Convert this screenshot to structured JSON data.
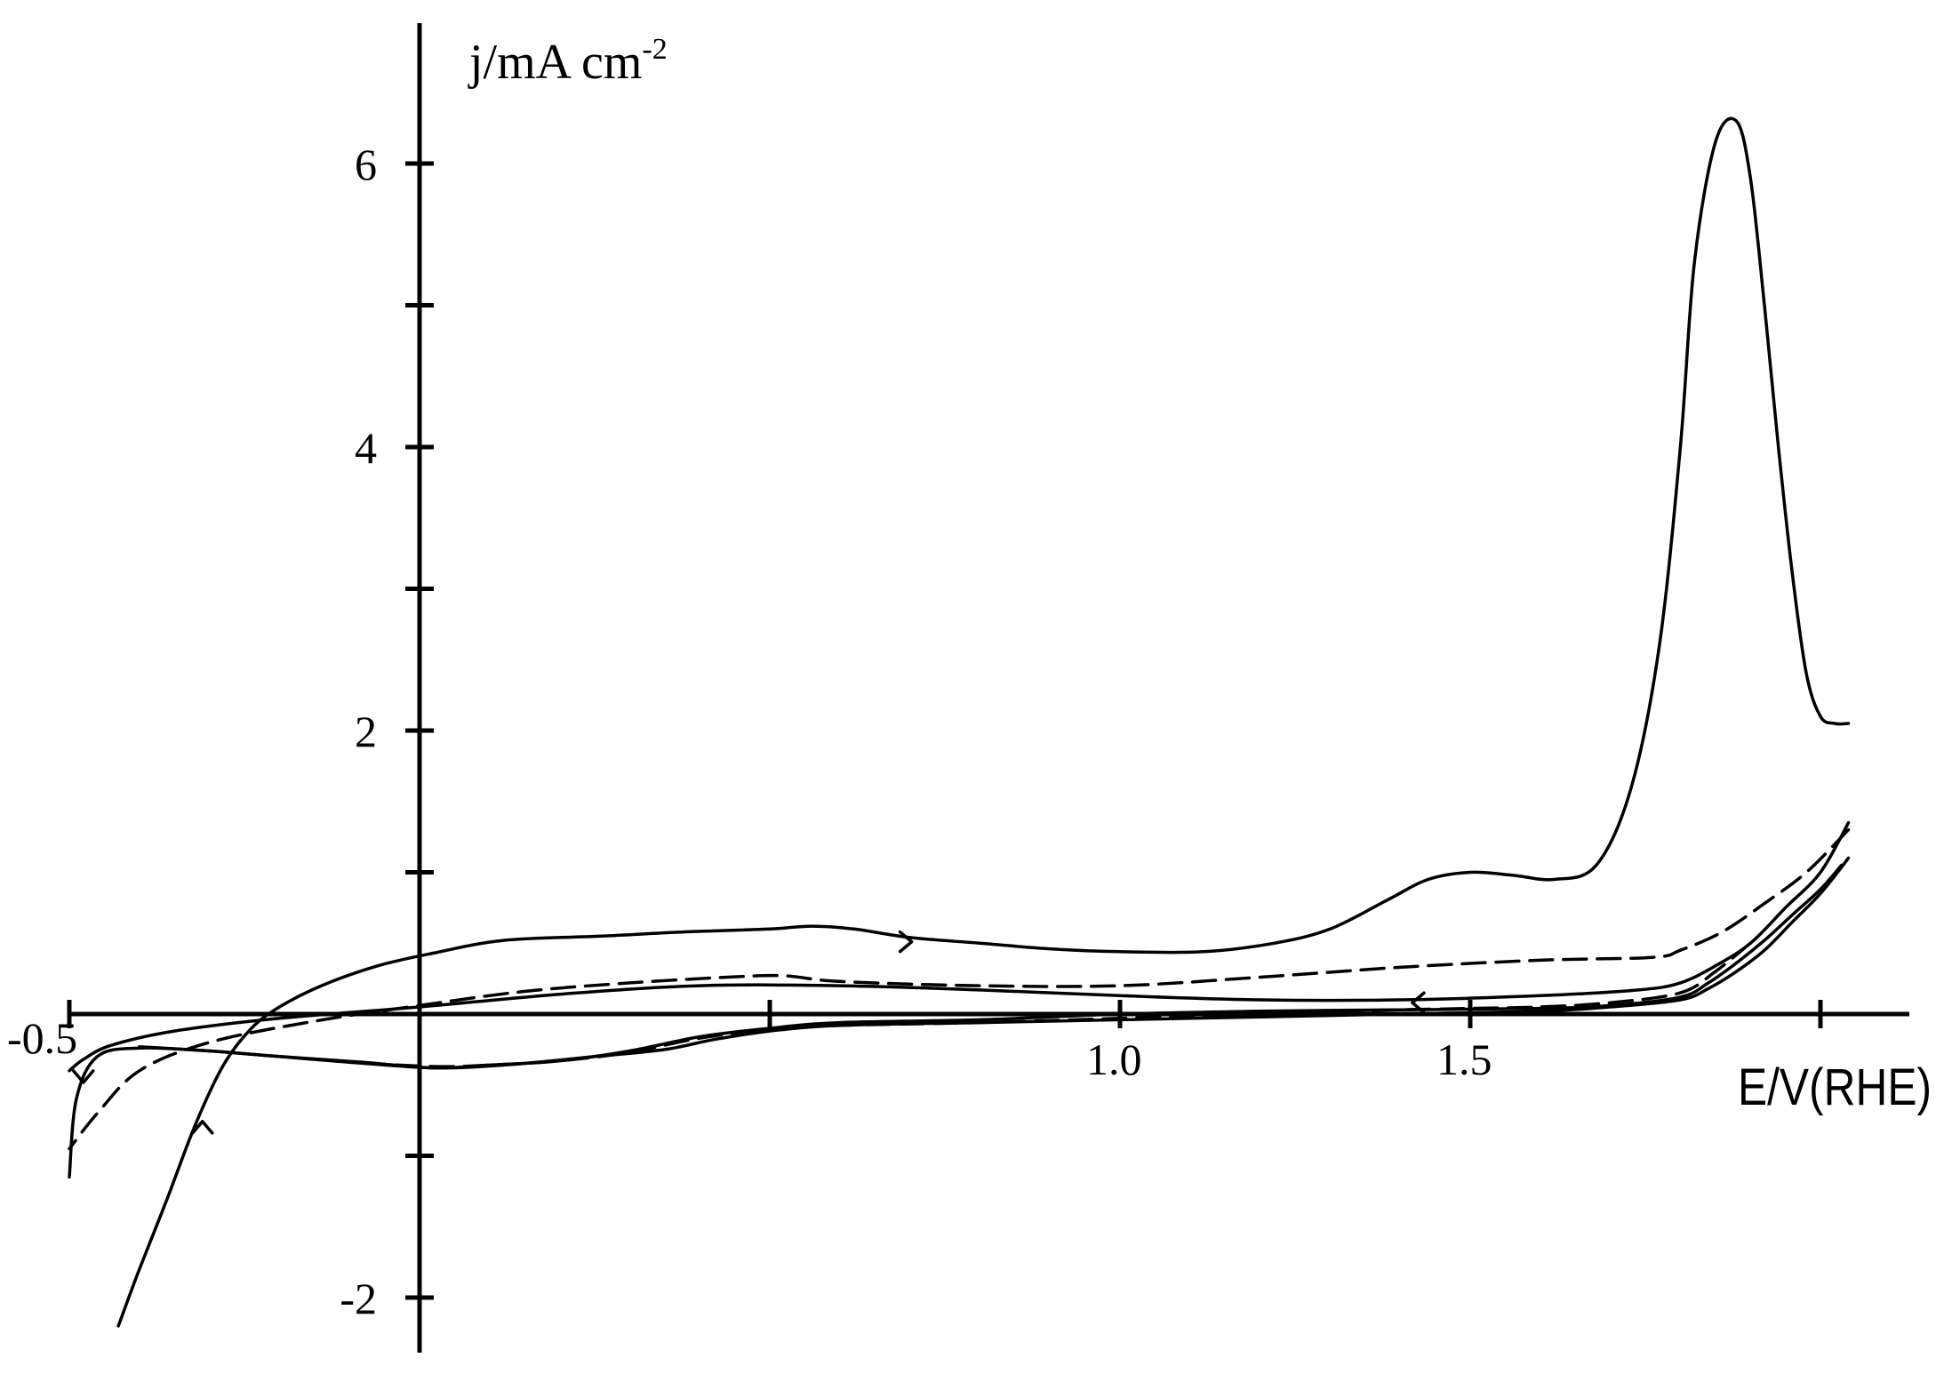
{
  "chart_data": {
    "type": "line",
    "title": "",
    "ylabel": "j/mA cm",
    "ylabel_exponent": "-2",
    "xlabel": "E/V(RHE)",
    "xlim": [
      -0.5,
      2.1
    ],
    "ylim": [
      -2.4,
      7.0
    ],
    "grid": false,
    "x_ticks": [
      -0.5,
      0.0,
      0.5,
      1.0,
      1.5,
      2.0
    ],
    "x_tick_labels": [
      {
        "value": -0.5,
        "label": "-0.5"
      },
      {
        "value": 1.0,
        "label": "1.0"
      },
      {
        "value": 1.5,
        "label": "1.5"
      }
    ],
    "y_ticks": [
      -2,
      -1,
      1,
      2,
      3,
      4,
      5,
      6
    ],
    "y_tick_labels": [
      {
        "value": 6,
        "label": "6"
      },
      {
        "value": 4,
        "label": "4"
      },
      {
        "value": 2,
        "label": "2"
      },
      {
        "value": -2,
        "label": "-2"
      }
    ],
    "series": [
      {
        "style": "solid",
        "points": [
          [
            2.04,
            2.05
          ],
          [
            2.02,
            2.05
          ],
          [
            2.0,
            2.1
          ],
          [
            1.98,
            2.4
          ],
          [
            1.96,
            3.1
          ],
          [
            1.94,
            4.0
          ],
          [
            1.92,
            5.0
          ],
          [
            1.9,
            5.9
          ],
          [
            1.88,
            6.3
          ],
          [
            1.85,
            6.15
          ],
          [
            1.82,
            5.3
          ],
          [
            1.8,
            4.0
          ],
          [
            1.77,
            2.6
          ],
          [
            1.73,
            1.6
          ],
          [
            1.68,
            1.05
          ],
          [
            1.62,
            0.95
          ],
          [
            1.56,
            0.98
          ],
          [
            1.5,
            1.0
          ],
          [
            1.44,
            0.95
          ],
          [
            1.38,
            0.8
          ],
          [
            1.3,
            0.6
          ],
          [
            1.22,
            0.5
          ],
          [
            1.12,
            0.44
          ],
          [
            1.0,
            0.44
          ],
          [
            0.9,
            0.46
          ],
          [
            0.8,
            0.5
          ],
          [
            0.7,
            0.54
          ],
          [
            0.62,
            0.6
          ],
          [
            0.56,
            0.62
          ],
          [
            0.5,
            0.6
          ],
          [
            0.38,
            0.58
          ],
          [
            0.26,
            0.55
          ],
          [
            0.12,
            0.52
          ],
          [
            0.02,
            0.43
          ],
          [
            -0.06,
            0.34
          ],
          [
            -0.14,
            0.2
          ],
          [
            -0.2,
            0.05
          ],
          [
            -0.24,
            -0.1
          ],
          [
            -0.28,
            -0.36
          ],
          [
            -0.32,
            -0.78
          ],
          [
            -0.36,
            -1.3
          ],
          [
            -0.4,
            -1.8
          ],
          [
            -0.43,
            -2.2
          ]
        ]
      },
      {
        "style": "solid",
        "points": [
          [
            2.04,
            1.35
          ],
          [
            2.0,
            1.0
          ],
          [
            1.95,
            0.75
          ],
          [
            1.9,
            0.5
          ],
          [
            1.85,
            0.34
          ],
          [
            1.8,
            0.22
          ],
          [
            1.74,
            0.17
          ],
          [
            1.6,
            0.13
          ],
          [
            1.4,
            0.1
          ],
          [
            1.2,
            0.1
          ],
          [
            1.0,
            0.13
          ],
          [
            0.8,
            0.17
          ],
          [
            0.6,
            0.2
          ],
          [
            0.4,
            0.2
          ],
          [
            0.2,
            0.14
          ],
          [
            0.0,
            0.05
          ],
          [
            -0.2,
            -0.03
          ],
          [
            -0.35,
            -0.12
          ],
          [
            -0.44,
            -0.22
          ],
          [
            -0.48,
            -0.32
          ],
          [
            -0.5,
            -0.4
          ]
        ]
      },
      {
        "style": "solid",
        "points": [
          [
            2.04,
            1.1
          ],
          [
            2.0,
            0.85
          ],
          [
            1.96,
            0.65
          ],
          [
            1.92,
            0.45
          ],
          [
            1.88,
            0.3
          ],
          [
            1.84,
            0.18
          ],
          [
            1.8,
            0.1
          ],
          [
            1.7,
            0.05
          ],
          [
            1.6,
            0.02
          ],
          [
            1.4,
            0.0
          ],
          [
            1.2,
            -0.02
          ],
          [
            1.0,
            -0.04
          ],
          [
            0.8,
            -0.06
          ],
          [
            0.6,
            -0.08
          ],
          [
            0.5,
            -0.12
          ],
          [
            0.42,
            -0.18
          ],
          [
            0.35,
            -0.25
          ],
          [
            0.25,
            -0.3
          ],
          [
            0.12,
            -0.36
          ],
          [
            0.02,
            -0.38
          ],
          [
            -0.08,
            -0.34
          ],
          [
            -0.2,
            -0.3
          ],
          [
            -0.3,
            -0.26
          ],
          [
            -0.4,
            -0.24
          ],
          [
            -0.46,
            -0.3
          ],
          [
            -0.49,
            -0.6
          ],
          [
            -0.5,
            -1.15
          ]
        ]
      },
      {
        "style": "solid",
        "points": [
          [
            2.03,
            1.05
          ],
          [
            2.0,
            0.88
          ],
          [
            1.96,
            0.7
          ],
          [
            1.92,
            0.52
          ],
          [
            1.88,
            0.36
          ],
          [
            1.84,
            0.22
          ],
          [
            1.8,
            0.12
          ],
          [
            1.7,
            0.06
          ],
          [
            1.6,
            0.04
          ],
          [
            1.4,
            0.03
          ],
          [
            1.2,
            0.02
          ],
          [
            1.0,
            0.0
          ],
          [
            0.8,
            -0.04
          ],
          [
            0.6,
            -0.06
          ],
          [
            0.5,
            -0.1
          ],
          [
            0.4,
            -0.16
          ],
          [
            0.3,
            -0.26
          ],
          [
            0.2,
            -0.33
          ],
          [
            0.1,
            -0.36
          ],
          [
            0.02,
            -0.38
          ],
          [
            -0.1,
            -0.34
          ],
          [
            -0.2,
            -0.3
          ],
          [
            -0.3,
            -0.26
          ],
          [
            -0.4,
            -0.23
          ]
        ]
      },
      {
        "style": "dashed",
        "points": [
          [
            2.04,
            1.3
          ],
          [
            1.98,
            1.0
          ],
          [
            1.92,
            0.78
          ],
          [
            1.86,
            0.58
          ],
          [
            1.8,
            0.45
          ],
          [
            1.76,
            0.4
          ],
          [
            1.6,
            0.38
          ],
          [
            1.4,
            0.33
          ],
          [
            1.2,
            0.26
          ],
          [
            1.0,
            0.2
          ],
          [
            0.8,
            0.2
          ],
          [
            0.6,
            0.23
          ],
          [
            0.52,
            0.27
          ],
          [
            0.44,
            0.26
          ],
          [
            0.3,
            0.22
          ],
          [
            0.15,
            0.16
          ],
          [
            0.0,
            0.06
          ],
          [
            -0.15,
            -0.05
          ],
          [
            -0.3,
            -0.2
          ],
          [
            -0.4,
            -0.4
          ],
          [
            -0.46,
            -0.7
          ],
          [
            -0.5,
            -0.95
          ]
        ]
      },
      {
        "style": "dashed",
        "points": [
          [
            1.9,
            0.5
          ],
          [
            1.85,
            0.3
          ],
          [
            1.8,
            0.15
          ],
          [
            1.7,
            0.08
          ],
          [
            1.6,
            0.05
          ],
          [
            1.5,
            0.04
          ],
          [
            1.4,
            0.03
          ],
          [
            1.3,
            0.02
          ],
          [
            1.2,
            0.0
          ],
          [
            1.0,
            -0.03
          ],
          [
            0.8,
            -0.06
          ],
          [
            0.6,
            -0.08
          ],
          [
            0.5,
            -0.11
          ],
          [
            0.4,
            -0.17
          ],
          [
            0.3,
            -0.27
          ],
          [
            0.2,
            -0.33
          ],
          [
            0.1,
            -0.36
          ],
          [
            0.02,
            -0.37
          ],
          [
            -0.1,
            -0.34
          ]
        ]
      }
    ],
    "annotations": [
      {
        "type": "direction-arrow",
        "x": 0.7,
        "y": 0.51,
        "direction": "right"
      },
      {
        "type": "direction-arrow",
        "x": -0.31,
        "y": -0.77,
        "direction": "up"
      },
      {
        "type": "direction-arrow",
        "x": -0.48,
        "y": -0.47,
        "direction": "down"
      },
      {
        "type": "direction-arrow",
        "x": 1.42,
        "y": 0.08,
        "direction": "left"
      }
    ]
  }
}
